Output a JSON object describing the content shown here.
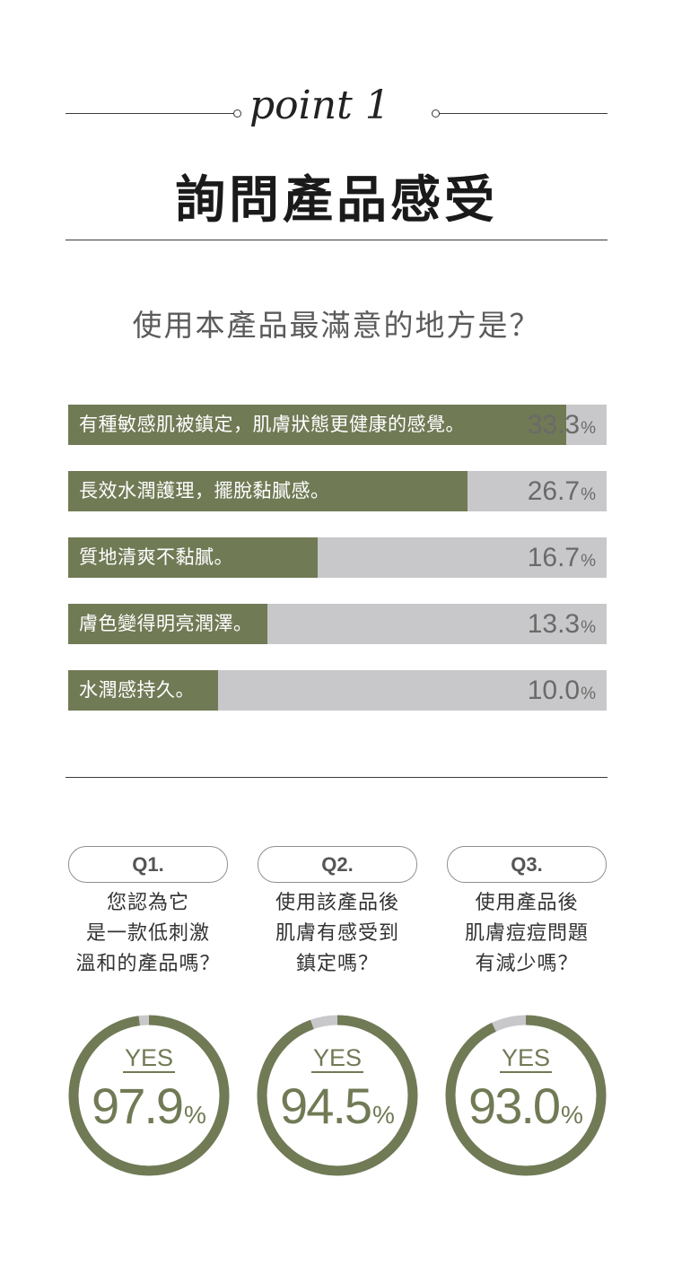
{
  "header": {
    "script_text": "point 1",
    "title": "詢問產品感受"
  },
  "question": "使用本產品最滿意的地方是？",
  "chart_data": [
    {
      "type": "bar",
      "categories": [
        "有種敏感肌被鎮定，肌膚狀態更健康的感覺。",
        "長效水潤護理，擺脫黏膩感。",
        "質地清爽不黏膩。",
        "膚色變得明亮潤澤。",
        "水潤感持久。"
      ],
      "values": [
        33.3,
        26.7,
        16.7,
        13.3,
        10.0
      ],
      "value_labels": [
        "33.3",
        "26.7",
        "16.7",
        "13.3",
        "10.0"
      ],
      "unit": "%",
      "xlim": [
        0,
        36
      ],
      "colors": {
        "fill": "#707a55",
        "track": "#c8c8ca"
      }
    },
    {
      "type": "pie",
      "items": [
        {
          "q": "Q1.",
          "lines": [
            "您認為它",
            "是一款低刺激",
            "溫和的產品嗎？"
          ],
          "label": "YES",
          "value": 97.9,
          "display": "97.9"
        },
        {
          "q": "Q2.",
          "lines": [
            "使用該產品後",
            "肌膚有感受到",
            "鎮定嗎？"
          ],
          "label": "YES",
          "value": 94.5,
          "display": "94.5"
        },
        {
          "q": "Q3.",
          "lines": [
            "使用產品後",
            "肌膚痘痘問題",
            "有減少嗎？"
          ],
          "label": "YES",
          "value": 93.0,
          "display": "93.0"
        }
      ],
      "unit": "%",
      "colors": {
        "ring": "#707a55",
        "remainder": "#c8c8ca"
      }
    }
  ]
}
